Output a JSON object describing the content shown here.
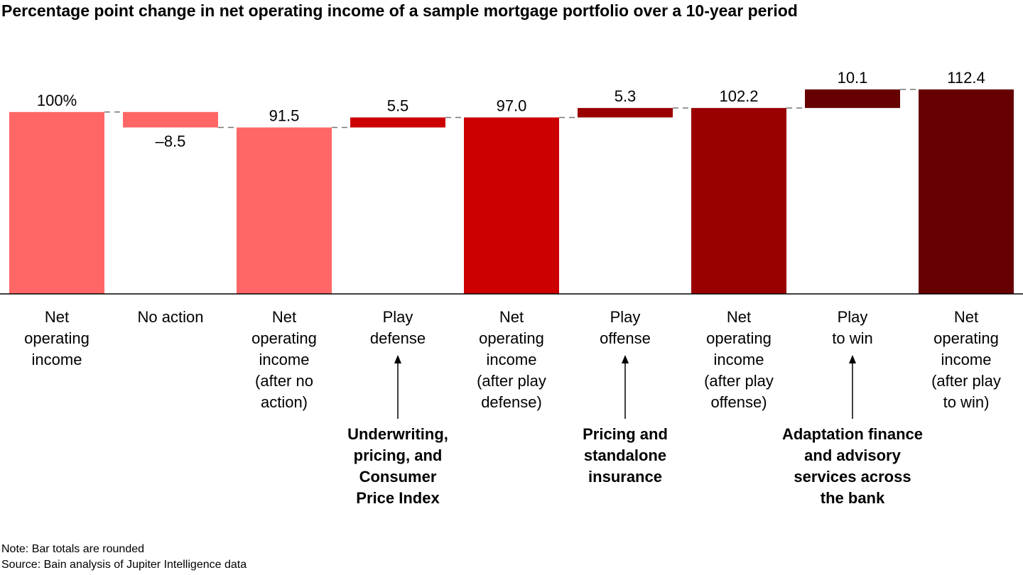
{
  "title": "Percentage point change in net operating income of a sample mortgage portfolio over a 10-year period",
  "chart_data": {
    "type": "bar",
    "subtype": "waterfall",
    "categories": [
      [
        "Net",
        "operating",
        "income"
      ],
      [
        "No action"
      ],
      [
        "Net",
        "operating",
        "income",
        "(after no",
        "action)"
      ],
      [
        "Play",
        "defense"
      ],
      [
        "Net",
        "operating",
        "income",
        "(after play",
        "defense)"
      ],
      [
        "Play",
        "offense"
      ],
      [
        "Net",
        "operating",
        "income",
        "(after play",
        "offense)"
      ],
      [
        "Play",
        "to win"
      ],
      [
        "Net",
        "operating",
        "income",
        "(after play",
        "to win)"
      ]
    ],
    "bars": [
      {
        "kind": "total",
        "start": 0,
        "end": 100,
        "label": "100%",
        "color": "#ff6666"
      },
      {
        "kind": "delta",
        "start": 100,
        "end": 91.5,
        "label": "–8.5",
        "color": "#ff6666"
      },
      {
        "kind": "total",
        "start": 0,
        "end": 91.5,
        "label": "91.5",
        "color": "#ff6666"
      },
      {
        "kind": "delta",
        "start": 91.5,
        "end": 97.0,
        "label": "5.5",
        "color": "#cc0000"
      },
      {
        "kind": "total",
        "start": 0,
        "end": 97.0,
        "label": "97.0",
        "color": "#cc0000"
      },
      {
        "kind": "delta",
        "start": 97.0,
        "end": 102.2,
        "label": "5.3",
        "color": "#990000"
      },
      {
        "kind": "total",
        "start": 0,
        "end": 102.2,
        "label": "102.2",
        "color": "#990000"
      },
      {
        "kind": "delta",
        "start": 102.2,
        "end": 112.4,
        "label": "10.1",
        "color": "#660000"
      },
      {
        "kind": "total",
        "start": 0,
        "end": 112.4,
        "label": "112.4",
        "color": "#660000"
      }
    ],
    "ylim": [
      0,
      112.4
    ],
    "grid": false,
    "levers": [
      {
        "category_index": 3,
        "lines": [
          "Underwriting,",
          "pricing, and",
          "Consumer",
          "Price Index"
        ]
      },
      {
        "category_index": 5,
        "lines": [
          "Pricing and",
          "standalone",
          "insurance"
        ]
      },
      {
        "category_index": 7,
        "lines": [
          "Adaptation finance",
          "and advisory",
          "services across",
          "the bank"
        ]
      }
    ]
  },
  "notes": {
    "note": "Note: Bar totals are rounded",
    "source": "Source: Bain analysis of Jupiter Intelligence data"
  }
}
